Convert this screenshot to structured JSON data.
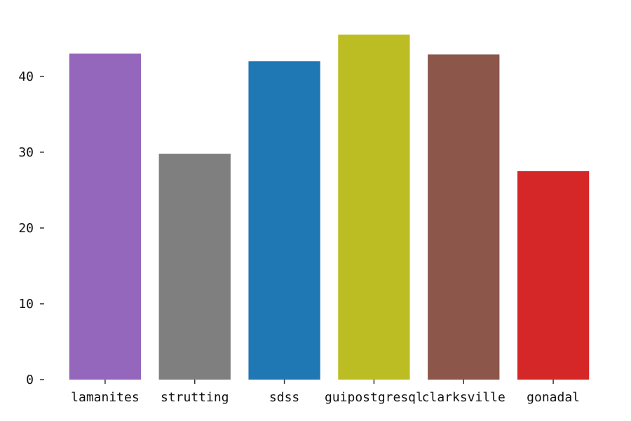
{
  "chart_data": {
    "type": "bar",
    "title": "",
    "xlabel": "",
    "ylabel": "",
    "categories": [
      "lamanites",
      "strutting",
      "sdss",
      "guipostgresql",
      "clarksville",
      "gonadal"
    ],
    "values": [
      43.0,
      29.8,
      42.0,
      45.5,
      42.9,
      27.5
    ],
    "colors": [
      "#9467bd",
      "#7f7f7f",
      "#1f77b4",
      "#bcbd22",
      "#8c564b",
      "#d62728"
    ],
    "ylim": [
      0,
      47.3
    ],
    "yticks": [
      0,
      10,
      20,
      30,
      40
    ],
    "ytick_labels": [
      "0",
      "10",
      "20",
      "30",
      "40"
    ],
    "grid": false,
    "legend": "none"
  }
}
